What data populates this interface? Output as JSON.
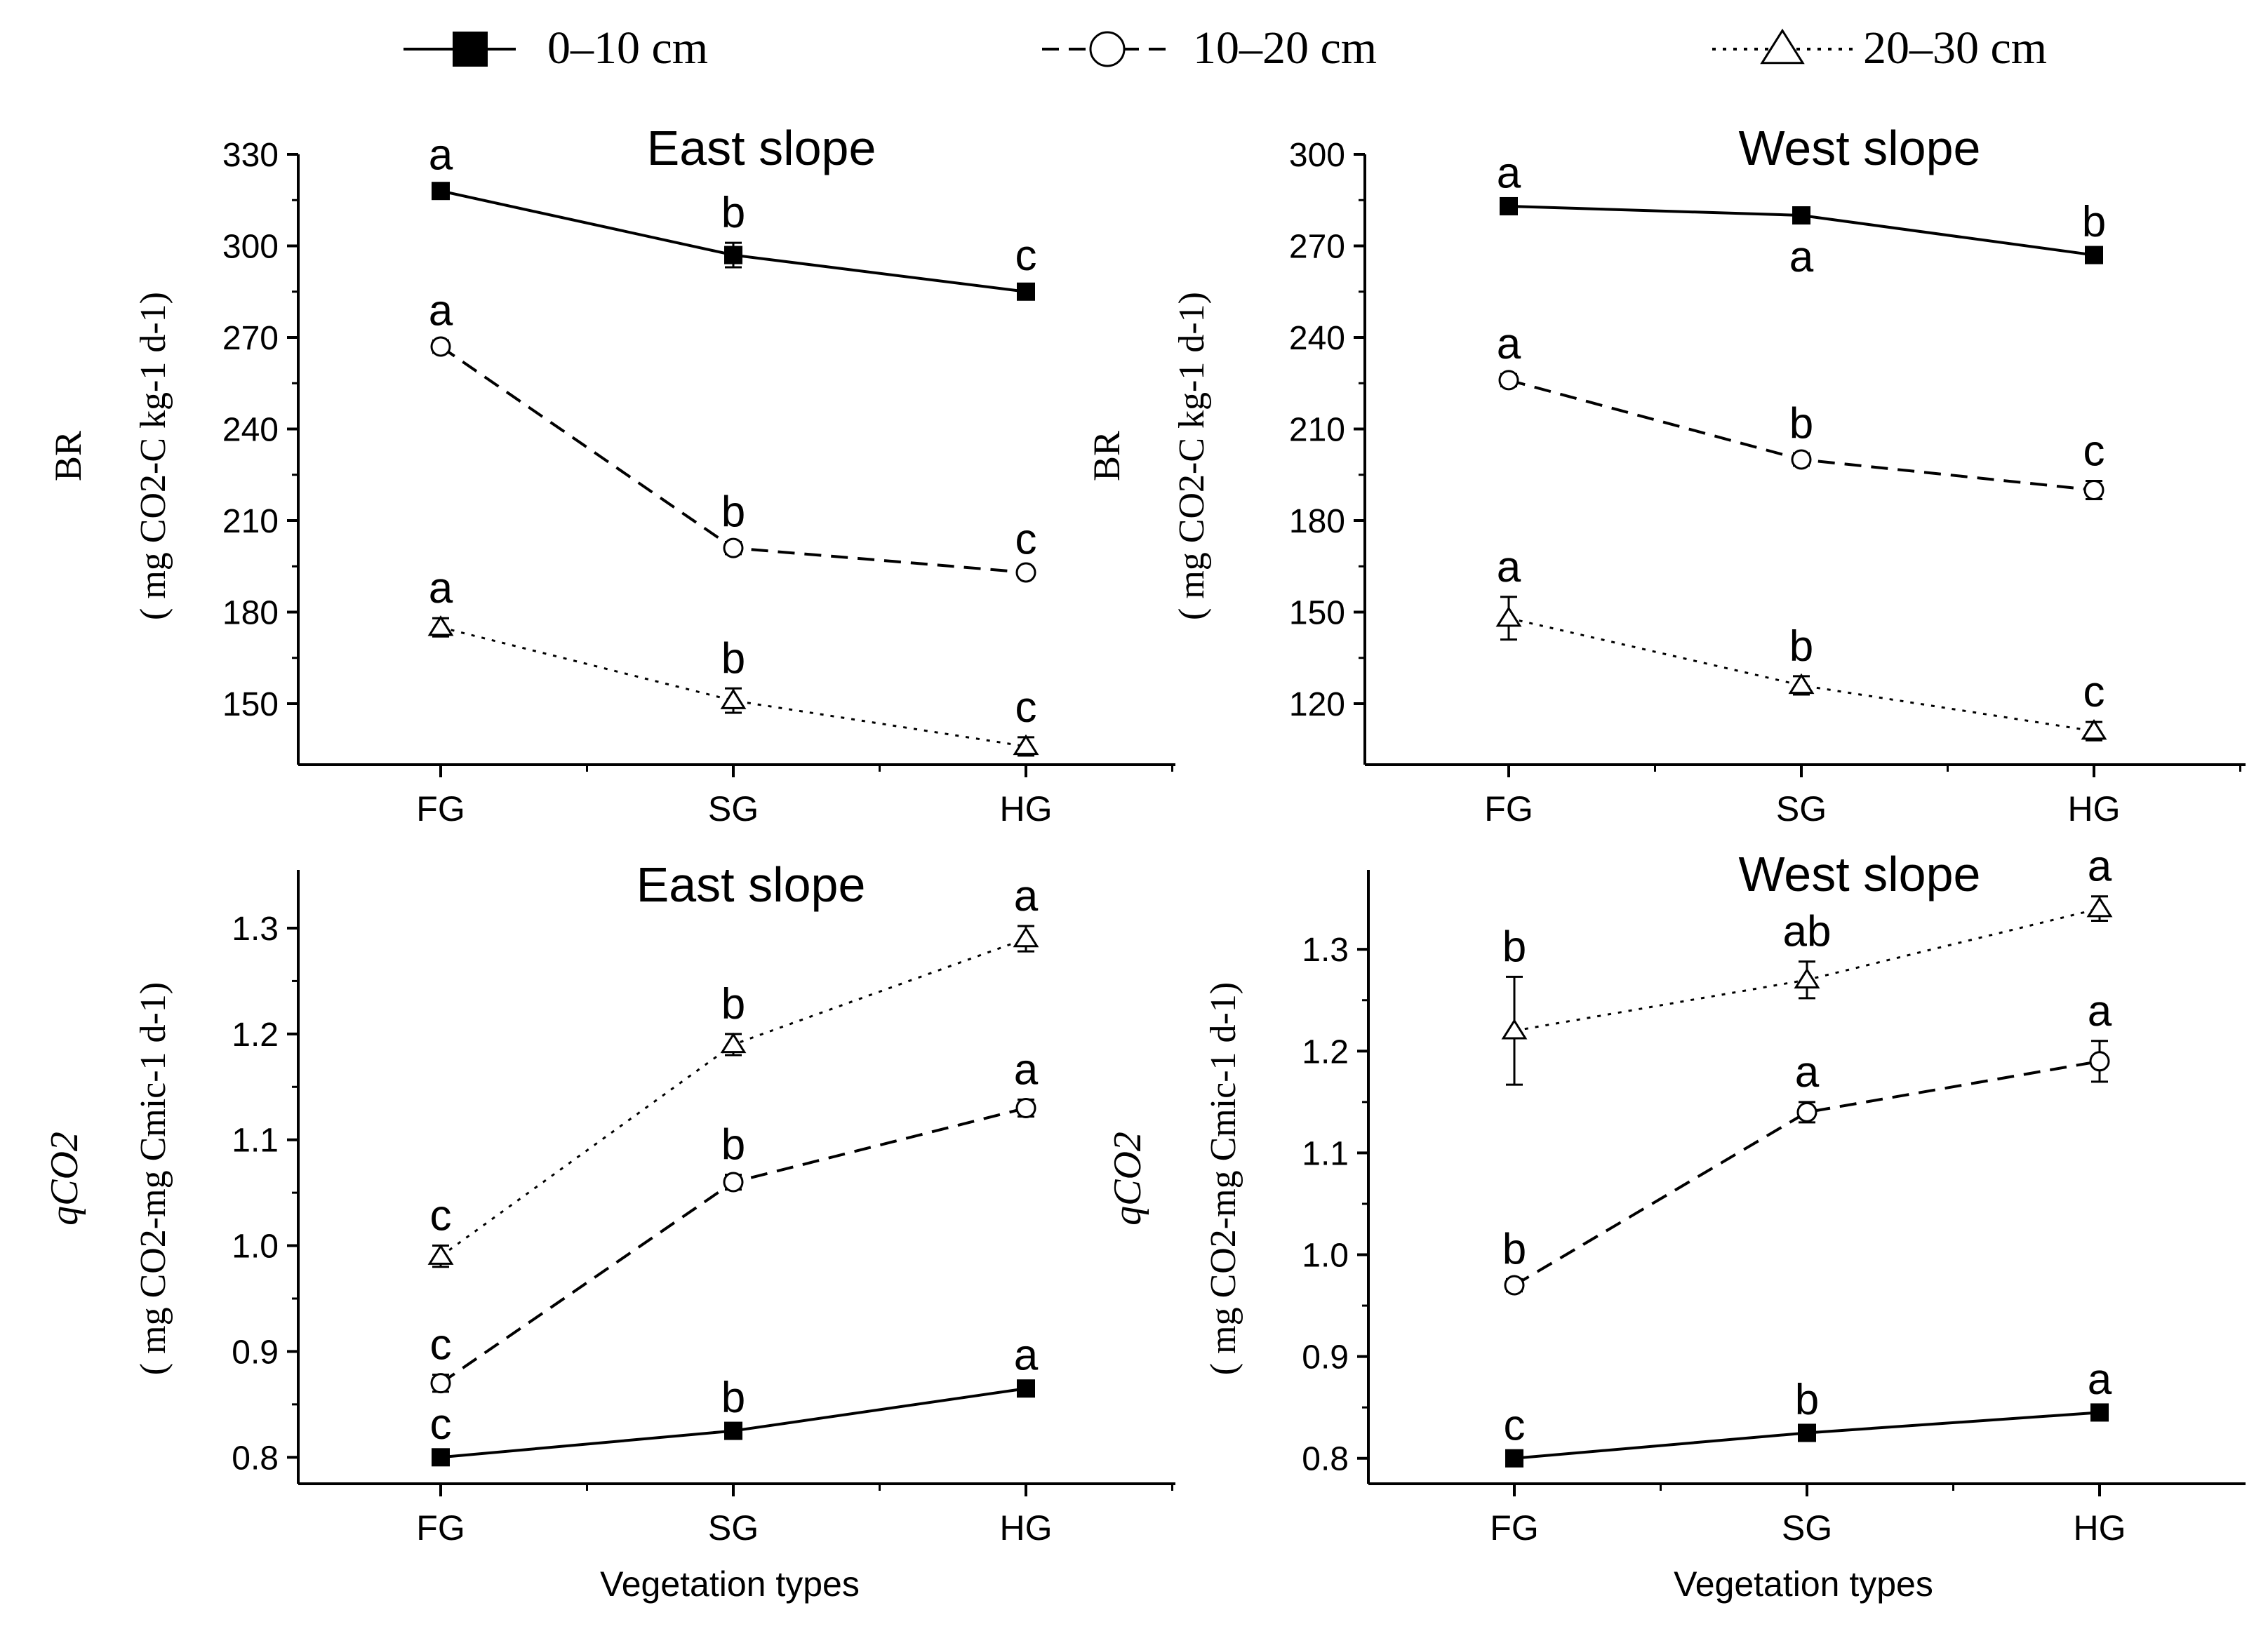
{
  "legend": {
    "series": [
      {
        "name": "0–10 cm",
        "marker": "filled-square",
        "line": "solid"
      },
      {
        "name": "10–20 cm",
        "marker": "open-circle",
        "line": "dashed"
      },
      {
        "name": "20–30 cm",
        "marker": "open-triangle",
        "line": "dotted"
      }
    ]
  },
  "x_axis_title": "Vegetation types",
  "y_axis_titles": {
    "br_main": "BR",
    "br_units": "( mg CO2-C kg-1 d-1)",
    "qco2_main": "qCO2",
    "qco2_units": "( mg CO2-mg Cmic-1 d-1)"
  },
  "chart_data": [
    {
      "type": "line",
      "title": "East slope",
      "ylabel": "BR ( mg CO2-C kg-1 d-1)",
      "xlabel": "",
      "categories": [
        "FG",
        "SG",
        "HG"
      ],
      "ylim": [
        130,
        330
      ],
      "yticks": [
        150,
        180,
        210,
        240,
        270,
        300,
        330
      ],
      "series": [
        {
          "name": "0–10 cm",
          "values": [
            318,
            297,
            285
          ],
          "errors": [
            2,
            4,
            2
          ],
          "letters": [
            "a",
            "b",
            "c"
          ],
          "letter_pos": [
            "above",
            "above",
            "above"
          ]
        },
        {
          "name": "10–20 cm",
          "values": [
            267,
            201,
            193
          ],
          "errors": [
            2,
            2,
            1
          ],
          "letters": [
            "a",
            "b",
            "c"
          ],
          "letter_pos": [
            "above",
            "above",
            "above"
          ]
        },
        {
          "name": "20–30 cm",
          "values": [
            175,
            151,
            136
          ],
          "errors": [
            3,
            4,
            3
          ],
          "letters": [
            "a",
            "b",
            "c"
          ],
          "letter_pos": [
            "above",
            "above",
            "above"
          ]
        }
      ]
    },
    {
      "type": "line",
      "title": "West slope",
      "ylabel": "BR ( mg CO2-C kg-1 d-1)",
      "xlabel": "",
      "categories": [
        "FG",
        "SG",
        "HG"
      ],
      "ylim": [
        100,
        300
      ],
      "yticks": [
        120,
        150,
        180,
        210,
        240,
        270,
        300
      ],
      "series": [
        {
          "name": "0–10 cm",
          "values": [
            283,
            280,
            267
          ],
          "errors": [
            1,
            1,
            1
          ],
          "letters": [
            "a",
            "a",
            "b"
          ],
          "letter_pos": [
            "above",
            "below",
            "above"
          ]
        },
        {
          "name": "10–20 cm",
          "values": [
            226,
            200,
            190
          ],
          "errors": [
            2,
            2,
            3
          ],
          "letters": [
            "a",
            "b",
            "c"
          ],
          "letter_pos": [
            "above",
            "above",
            "above"
          ]
        },
        {
          "name": "20–30 cm",
          "values": [
            148,
            126,
            111
          ],
          "errors": [
            7,
            3,
            3
          ],
          "letters": [
            "a",
            "b",
            "c"
          ],
          "letter_pos": [
            "above",
            "above",
            "above"
          ]
        }
      ]
    },
    {
      "type": "line",
      "title": "East slope",
      "ylabel": "qCO2 ( mg CO2-mg Cmic-1 d-1)",
      "xlabel": "Vegetation types",
      "categories": [
        "FG",
        "SG",
        "HG"
      ],
      "ylim": [
        0.775,
        1.355
      ],
      "yticks": [
        0.8,
        0.9,
        1.0,
        1.1,
        1.2,
        1.3
      ],
      "series": [
        {
          "name": "0–10 cm",
          "values": [
            0.8,
            0.825,
            0.865
          ],
          "errors": [
            0.003,
            0.003,
            0.003
          ],
          "letters": [
            "c",
            "b",
            "a"
          ],
          "letter_pos": [
            "above",
            "above",
            "above"
          ]
        },
        {
          "name": "10–20 cm",
          "values": [
            0.87,
            1.06,
            1.13
          ],
          "errors": [
            0.008,
            0.007,
            0.008
          ],
          "letters": [
            "c",
            "b",
            "a"
          ],
          "letter_pos": [
            "above",
            "above",
            "above"
          ]
        },
        {
          "name": "20–30 cm",
          "values": [
            0.99,
            1.19,
            1.29
          ],
          "errors": [
            0.01,
            0.01,
            0.012
          ],
          "letters": [
            "c",
            "b",
            "a"
          ],
          "letter_pos": [
            "above",
            "above",
            "above"
          ]
        }
      ]
    },
    {
      "type": "line",
      "title": "West slope",
      "ylabel": "qCO2 ( mg CO2-mg Cmic-1 d-1)",
      "xlabel": "Vegetation types",
      "categories": [
        "FG",
        "SG",
        "HG"
      ],
      "ylim": [
        0.775,
        1.378
      ],
      "yticks": [
        0.8,
        0.9,
        1.0,
        1.1,
        1.2,
        1.3
      ],
      "series": [
        {
          "name": "0–10 cm",
          "values": [
            0.8,
            0.825,
            0.845
          ],
          "errors": [
            0.003,
            0.003,
            0.003
          ],
          "letters": [
            "c",
            "b",
            "a"
          ],
          "letter_pos": [
            "above",
            "above",
            "above"
          ]
        },
        {
          "name": "10–20 cm",
          "values": [
            0.97,
            1.14,
            1.19
          ],
          "errors": [
            0.006,
            0.01,
            0.02
          ],
          "letters": [
            "b",
            "a",
            "a"
          ],
          "letter_pos": [
            "above",
            "above",
            "above"
          ]
        },
        {
          "name": "20–30 cm",
          "values": [
            1.22,
            1.27,
            1.34
          ],
          "errors": [
            0.053,
            0.018,
            0.012
          ],
          "letters": [
            "b",
            "ab",
            "a"
          ],
          "letter_pos": [
            "above",
            "above",
            "above"
          ]
        }
      ]
    }
  ]
}
